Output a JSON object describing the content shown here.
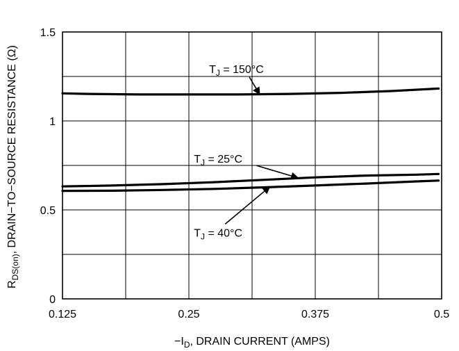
{
  "chart_data": {
    "type": "line",
    "xlabel_prefix": "−I",
    "xlabel_sub": "D",
    "xlabel_suffix": ", DRAIN CURRENT (AMPS)",
    "ylabel_prefix": "R",
    "ylabel_sub": "DS(on)",
    "ylabel_suffix": ", DRAIN−TO−SOURCE RESISTANCE (Ω)",
    "xlim": [
      0.125,
      0.5
    ],
    "ylim": [
      0,
      1.5
    ],
    "x_ticks": [
      {
        "value": 0.125,
        "label": "0.125"
      },
      {
        "value": 0.25,
        "label": "0.25"
      },
      {
        "value": 0.375,
        "label": "0.375"
      },
      {
        "value": 0.5,
        "label": "0.5"
      }
    ],
    "y_ticks": [
      {
        "value": 0,
        "label": "0"
      },
      {
        "value": 0.5,
        "label": "0.5"
      },
      {
        "value": 1,
        "label": "1"
      },
      {
        "value": 1.5,
        "label": "1.5"
      }
    ],
    "x_minor_ticks": [
      0.1875,
      0.3125,
      0.4375
    ],
    "y_minor_ticks": [
      0.25,
      0.75,
      1.25
    ],
    "grid": true,
    "series": [
      {
        "name_main": "T",
        "name_sub": "J",
        "name_rest": " = 150°C",
        "x": [
          0.125,
          0.15,
          0.2,
          0.25,
          0.3,
          0.35,
          0.4,
          0.45,
          0.497
        ],
        "y": [
          1.155,
          1.152,
          1.149,
          1.149,
          1.149,
          1.152,
          1.158,
          1.168,
          1.182
        ]
      },
      {
        "name_main": "T",
        "name_sub": "J",
        "name_rest": " = 25°C",
        "x": [
          0.125,
          0.175,
          0.225,
          0.275,
          0.325,
          0.375,
          0.425,
          0.475,
          0.497
        ],
        "y": [
          0.632,
          0.637,
          0.645,
          0.656,
          0.669,
          0.683,
          0.693,
          0.698,
          0.702
        ]
      },
      {
        "name_main": "T",
        "name_sub": "J",
        "name_rest": " = 40°C",
        "x": [
          0.125,
          0.175,
          0.225,
          0.275,
          0.325,
          0.375,
          0.425,
          0.475,
          0.497
        ],
        "y": [
          0.607,
          0.608,
          0.612,
          0.618,
          0.627,
          0.637,
          0.648,
          0.66,
          0.665
        ]
      }
    ],
    "annotations": [
      {
        "series": 0,
        "text_x": 0.27,
        "text_y": 1.27,
        "arrow_to": [
          0.32,
          1.149
        ]
      },
      {
        "series": 1,
        "text_x": 0.255,
        "text_y": 0.765,
        "arrow_to": [
          0.358,
          0.68
        ]
      },
      {
        "series": 2,
        "text_x": 0.255,
        "text_y": 0.35,
        "arrow_to": [
          0.33,
          0.63
        ]
      }
    ]
  }
}
